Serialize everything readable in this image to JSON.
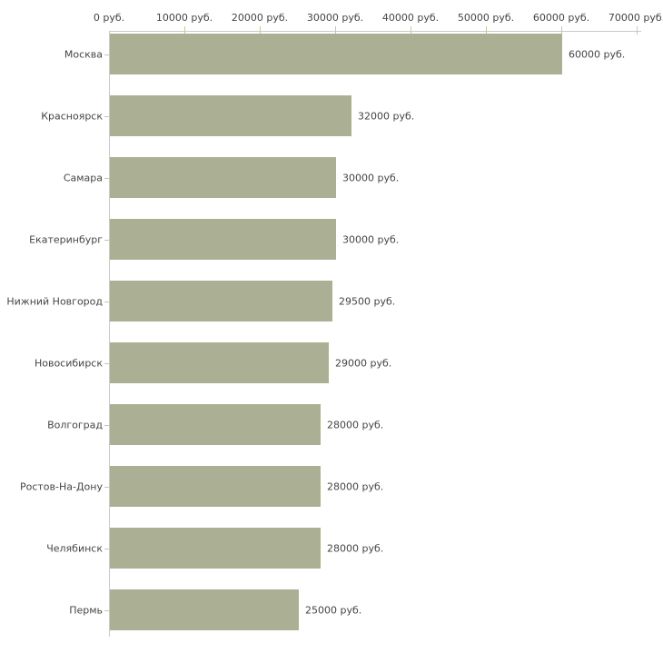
{
  "chart_data": {
    "type": "bar",
    "orientation": "horizontal",
    "title": "",
    "xlabel": "",
    "ylabel": "",
    "unit": "руб.",
    "categories": [
      "Москва",
      "Красноярск",
      "Самара",
      "Екатеринбург",
      "Нижний Новгород",
      "Новосибирск",
      "Волгоград",
      "Ростов-На-Дону",
      "Челябинск",
      "Пермь"
    ],
    "values": [
      60000,
      32000,
      30000,
      30000,
      29500,
      29000,
      28000,
      28000,
      28000,
      25000
    ],
    "value_labels": [
      "60000 руб.",
      "32000 руб.",
      "30000 руб.",
      "30000 руб.",
      "29500 руб.",
      "29000 руб.",
      "28000 руб.",
      "28000 руб.",
      "28000 руб.",
      "25000 руб."
    ],
    "x_axis": {
      "tick_values": [
        0,
        10000,
        20000,
        30000,
        40000,
        50000,
        60000,
        70000
      ],
      "tick_labels": [
        "0 руб.",
        "10000 руб.",
        "20000 руб.",
        "30000 руб.",
        "40000 руб.",
        "50000 руб.",
        "60000 руб.",
        "70000 руб."
      ],
      "min": 0,
      "max": 70000,
      "position": "top"
    },
    "legend": "none",
    "grid": "off",
    "colors": {
      "bar": "#abb095",
      "axis_line": "#c9c9c9",
      "tick_mark": "#ccc6a0",
      "text": "#454545"
    }
  }
}
